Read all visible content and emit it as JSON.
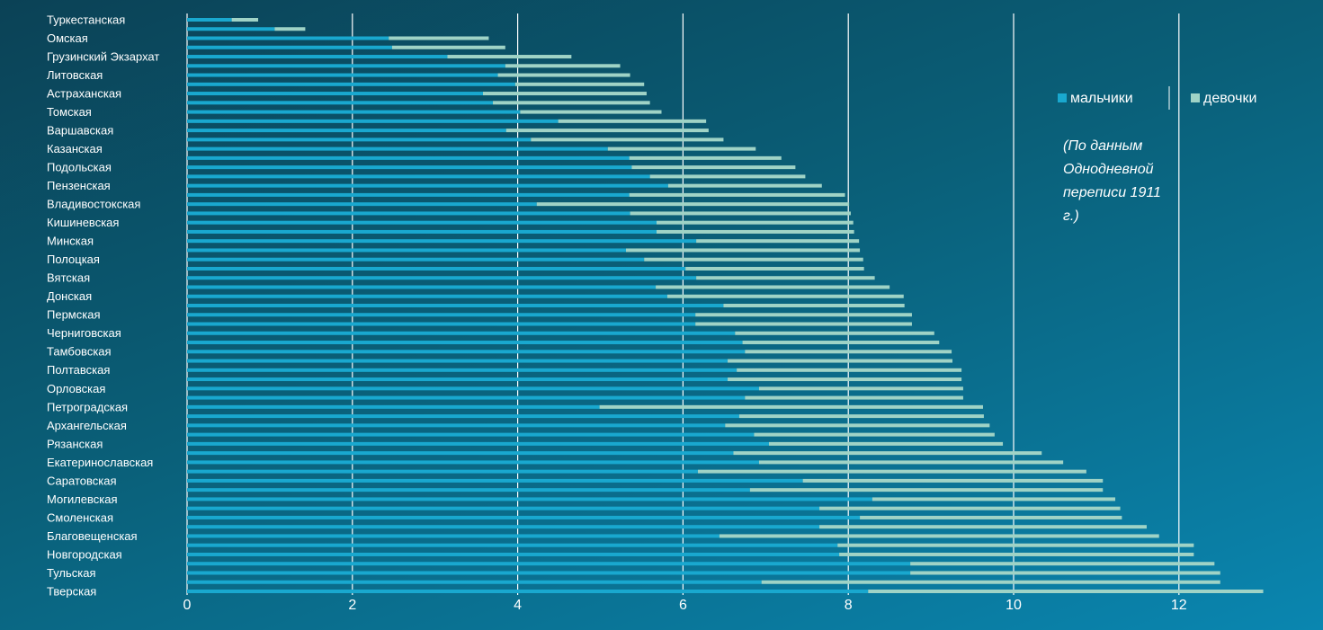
{
  "chart_data": {
    "type": "stacked_barh",
    "annotation": "(По данным Однодневной переписи 1911 г.)",
    "categories": [
      "Туркестанская",
      null,
      "Омская",
      null,
      "Грузинский Экзархат",
      null,
      "Литовская",
      null,
      "Астраханская",
      null,
      "Томская",
      null,
      "Варшавская",
      null,
      "Казанская",
      null,
      "Подольская",
      null,
      "Пензенская",
      null,
      "Владивостокская",
      null,
      "Кишиневская",
      null,
      "Минская",
      null,
      "Полоцкая",
      null,
      "Вятская",
      null,
      "Донская",
      null,
      "Пермская",
      null,
      "Черниговская",
      null,
      "Тамбовская",
      null,
      "Полтавская",
      null,
      "Орловская",
      null,
      "Петроградская",
      null,
      "Архангельская",
      null,
      "Рязанская",
      null,
      "Екатеринославская",
      null,
      "Саратовская",
      null,
      "Могилевская",
      null,
      "Смоленская",
      null,
      "Благовещенская",
      null,
      "Новгородская",
      null,
      "Тульская",
      null,
      "Тверская"
    ],
    "series": [
      {
        "name": "мальчики",
        "color": "#19a8cf",
        "values": [
          0.54,
          1.06,
          2.44,
          2.48,
          3.15,
          3.85,
          3.76,
          3.97,
          3.58,
          3.7,
          4.03,
          4.49,
          3.86,
          4.16,
          5.09,
          5.35,
          5.38,
          5.6,
          5.82,
          5.35,
          4.23,
          5.36,
          5.68,
          5.68,
          6.16,
          5.31,
          5.53,
          6.03,
          6.16,
          5.67,
          5.81,
          6.49,
          6.15,
          6.15,
          6.63,
          6.72,
          6.75,
          6.54,
          6.65,
          6.54,
          6.92,
          6.75,
          4.99,
          6.68,
          6.51,
          6.86,
          7.04,
          6.61,
          6.92,
          6.18,
          7.45,
          6.81,
          8.29,
          7.65,
          8.14,
          7.65,
          6.44,
          7.87,
          7.89,
          8.75,
          8.75,
          6.95,
          8.24
        ]
      },
      {
        "name": "девочки",
        "color": "#9fd3c6",
        "values": [
          0.32,
          0.37,
          1.21,
          1.37,
          1.5,
          1.39,
          1.6,
          1.56,
          1.98,
          1.9,
          1.71,
          1.79,
          2.45,
          2.33,
          1.79,
          1.84,
          1.98,
          1.88,
          1.86,
          2.61,
          3.78,
          2.67,
          2.38,
          2.39,
          1.97,
          2.83,
          2.65,
          2.16,
          2.16,
          2.83,
          2.86,
          2.19,
          2.62,
          2.62,
          2.41,
          2.38,
          2.5,
          2.72,
          2.72,
          2.83,
          2.47,
          2.64,
          4.64,
          2.96,
          3.2,
          2.91,
          2.83,
          3.73,
          3.68,
          4.7,
          3.63,
          4.27,
          2.94,
          3.64,
          3.17,
          3.96,
          5.32,
          4.31,
          4.29,
          3.68,
          3.75,
          5.55,
          4.78
        ]
      }
    ],
    "xlim": [
      0,
      13.5
    ],
    "xticks": [
      0,
      2,
      4,
      6,
      8,
      10,
      12
    ],
    "grid": true,
    "legend": "upper right"
  }
}
